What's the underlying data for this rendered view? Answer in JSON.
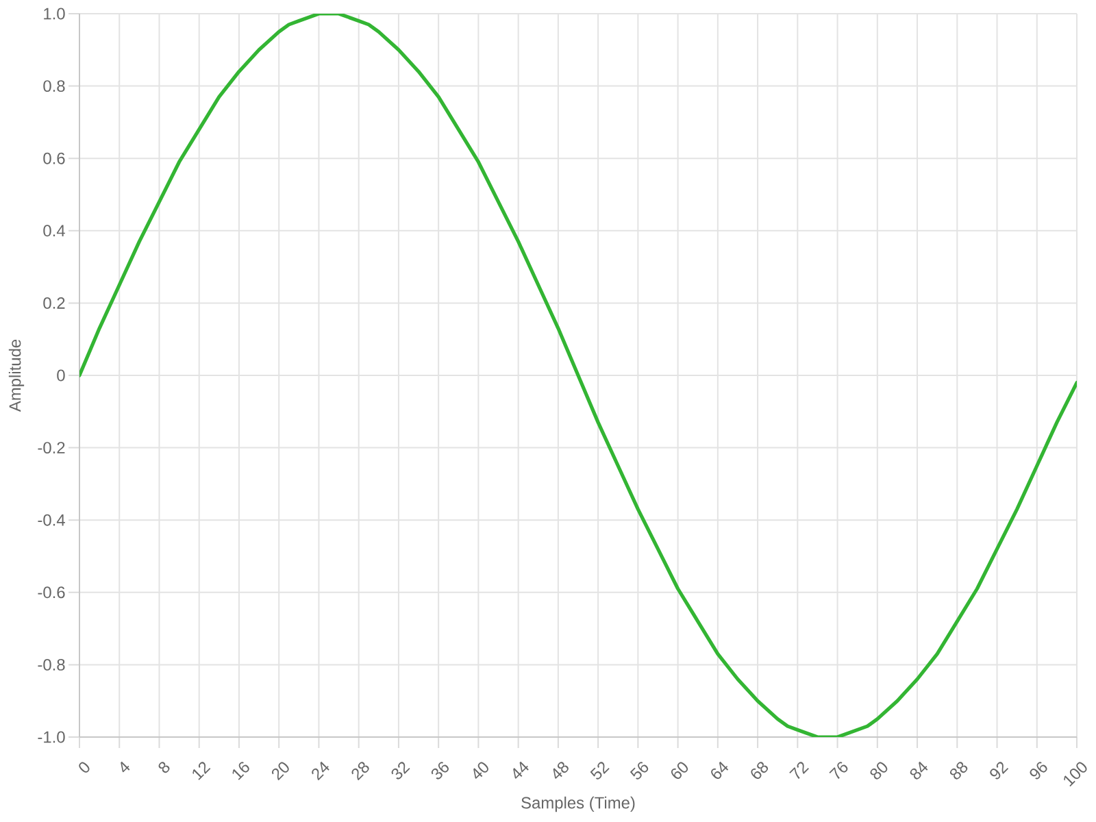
{
  "chart_data": {
    "type": "line",
    "xlabel": "Samples (Time)",
    "ylabel": "Amplitude",
    "x": [
      0,
      2,
      4,
      6,
      8,
      10,
      12,
      14,
      16,
      18,
      20,
      21,
      22,
      23,
      24,
      25,
      26,
      27,
      28,
      29,
      30,
      32,
      34,
      36,
      38,
      40,
      42,
      44,
      46,
      48,
      50,
      52,
      54,
      56,
      58,
      60,
      62,
      64,
      66,
      68,
      70,
      71,
      72,
      73,
      74,
      75,
      76,
      77,
      78,
      79,
      80,
      82,
      84,
      86,
      88,
      90,
      92,
      94,
      96,
      98,
      100
    ],
    "values": [
      0,
      0.13,
      0.25,
      0.37,
      0.48,
      0.59,
      0.68,
      0.77,
      0.84,
      0.9,
      0.95,
      0.97,
      0.98,
      0.99,
      1.0,
      1.0,
      1.0,
      0.99,
      0.98,
      0.97,
      0.95,
      0.9,
      0.84,
      0.77,
      0.68,
      0.59,
      0.48,
      0.37,
      0.25,
      0.13,
      0,
      -0.13,
      -0.25,
      -0.37,
      -0.48,
      -0.59,
      -0.68,
      -0.77,
      -0.84,
      -0.9,
      -0.95,
      -0.97,
      -0.98,
      -0.99,
      -1.0,
      -1.0,
      -1.0,
      -0.99,
      -0.98,
      -0.97,
      -0.95,
      -0.9,
      -0.84,
      -0.77,
      -0.68,
      -0.59,
      -0.48,
      -0.37,
      -0.25,
      -0.13,
      -0.02
    ],
    "color": "#33b533",
    "xlim": [
      0,
      100
    ],
    "ylim": [
      -1,
      1
    ],
    "xticks": [
      0,
      4,
      8,
      12,
      16,
      20,
      24,
      28,
      32,
      36,
      40,
      44,
      48,
      52,
      56,
      60,
      64,
      68,
      72,
      76,
      80,
      84,
      88,
      92,
      96,
      100
    ],
    "yticks": [
      {
        "value": -1,
        "label": "-1.0"
      },
      -0.8,
      -0.6,
      -0.4,
      -0.2,
      0,
      0.2,
      0.4,
      0.6,
      0.8,
      {
        "value": 1,
        "label": "1.0"
      }
    ],
    "grid": true
  }
}
